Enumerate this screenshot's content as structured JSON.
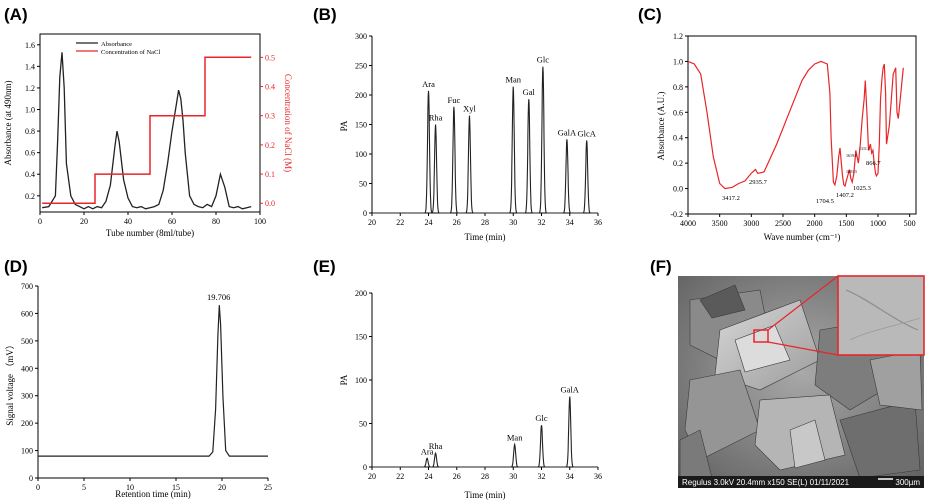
{
  "colors": {
    "black": "#222222",
    "red": "#e8262a",
    "axis": "#000000"
  },
  "chart_data": [
    {
      "id": "A",
      "panel_label": "(A)",
      "type": "line",
      "xlabel": "Tube number (8ml/tube)",
      "ylabel": "Absorbance (at 490nm)",
      "ylabel_right": "Concentration of NaCl (M)",
      "xlim": [
        0,
        100
      ],
      "ylim": [
        0.05,
        1.7
      ],
      "ylim_right": [
        -0.03,
        0.58
      ],
      "x_ticks": [
        "0",
        "20",
        "40",
        "60",
        "80",
        "100"
      ],
      "y_ticks": [
        "0.2",
        "0.4",
        "0.6",
        "0.8",
        "1.0",
        "1.2",
        "1.4",
        "1.6"
      ],
      "y_right_ticks": [
        "0.0",
        "0.1",
        "0.2",
        "0.3",
        "0.4",
        "0.5"
      ],
      "legend": {
        "position": "top-left",
        "entries": [
          "Absorbance",
          "Concentration of NaCl"
        ]
      },
      "series": [
        {
          "name": "Absorbance",
          "axis": "left",
          "color": "#222222",
          "x": [
            1,
            4,
            7,
            8,
            9,
            10,
            11,
            12,
            14,
            16,
            18,
            20,
            22,
            24,
            26,
            28,
            30,
            32,
            34,
            35,
            36,
            38,
            40,
            42,
            44,
            46,
            48,
            50,
            52,
            54,
            56,
            58,
            60,
            62,
            63,
            64,
            65,
            66,
            68,
            70,
            72,
            74,
            76,
            78,
            80,
            82,
            84,
            86,
            88,
            90,
            92,
            94,
            96
          ],
          "y": [
            0.09,
            0.1,
            0.2,
            0.7,
            1.3,
            1.53,
            1.2,
            0.5,
            0.2,
            0.12,
            0.1,
            0.08,
            0.1,
            0.08,
            0.1,
            0.09,
            0.15,
            0.3,
            0.65,
            0.8,
            0.7,
            0.35,
            0.18,
            0.1,
            0.09,
            0.1,
            0.08,
            0.09,
            0.1,
            0.12,
            0.25,
            0.5,
            0.8,
            1.05,
            1.18,
            1.1,
            0.9,
            0.6,
            0.2,
            0.12,
            0.1,
            0.09,
            0.12,
            0.1,
            0.2,
            0.4,
            0.28,
            0.1,
            0.09,
            0.1,
            0.08,
            0.09,
            0.1
          ]
        },
        {
          "name": "Concentration of NaCl",
          "axis": "right",
          "color": "#e8262a",
          "x": [
            1,
            25,
            25,
            50,
            50,
            75,
            75,
            96
          ],
          "y": [
            0,
            0,
            0.1,
            0.1,
            0.3,
            0.3,
            0.5,
            0.5
          ]
        }
      ]
    },
    {
      "id": "B",
      "panel_label": "(B)",
      "type": "line",
      "xlabel": "Time (min)",
      "ylabel": "PA",
      "xlim": [
        20,
        36
      ],
      "ylim": [
        0,
        300
      ],
      "x_ticks": [
        "20",
        "22",
        "24",
        "26",
        "28",
        "30",
        "32",
        "34",
        "36"
      ],
      "y_ticks": [
        "0",
        "50",
        "100",
        "150",
        "200",
        "250",
        "300"
      ],
      "peaks": [
        {
          "label": "Ara",
          "x": 24.0,
          "y": 207
        },
        {
          "label": "Rha",
          "x": 24.5,
          "y": 150
        },
        {
          "label": "Fuc",
          "x": 25.8,
          "y": 180
        },
        {
          "label": "Xyl",
          "x": 26.9,
          "y": 165
        },
        {
          "label": "Man",
          "x": 30.0,
          "y": 214
        },
        {
          "label": "Gal",
          "x": 31.1,
          "y": 193
        },
        {
          "label": "Glc",
          "x": 32.1,
          "y": 248
        },
        {
          "label": "GalA",
          "x": 33.8,
          "y": 125
        },
        {
          "label": "GlcA",
          "x": 35.2,
          "y": 123
        }
      ]
    },
    {
      "id": "C",
      "panel_label": "(C)",
      "type": "line",
      "xlabel": "Wave number (cm⁻¹)",
      "ylabel": "Absorbance (A.U.)",
      "xlim": [
        4000,
        400
      ],
      "ylim": [
        -0.2,
        1.2
      ],
      "x_ticks": [
        "4000",
        "3500",
        "3000",
        "2500",
        "2000",
        "1500",
        "1000",
        "500"
      ],
      "y_ticks": [
        "-0.2",
        "0.0",
        "0.2",
        "0.4",
        "0.6",
        "0.8",
        "1.0",
        "1.2"
      ],
      "series": [
        {
          "name": "",
          "color": "#e8262a",
          "x": [
            4000,
            3900,
            3800,
            3700,
            3600,
            3500,
            3417,
            3300,
            3200,
            3100,
            3000,
            2935,
            2900,
            2800,
            2600,
            2400,
            2200,
            2100,
            2000,
            1900,
            1800,
            1760,
            1740,
            1704,
            1680,
            1650,
            1620,
            1600,
            1560,
            1540,
            1520,
            1500,
            1450,
            1430,
            1407,
            1380,
            1350,
            1310,
            1280,
            1250,
            1220,
            1200,
            1170,
            1150,
            1120,
            1100,
            1080,
            1060,
            1040,
            1025,
            1000,
            980,
            960,
            940,
            920,
            900,
            880,
            866,
            850,
            820,
            790,
            760,
            720,
            700,
            680,
            650,
            600
          ],
          "y": [
            1.0,
            0.98,
            0.9,
            0.6,
            0.25,
            0.04,
            0.0,
            0.01,
            0.04,
            0.06,
            0.12,
            0.15,
            0.12,
            0.13,
            0.35,
            0.6,
            0.85,
            0.93,
            0.98,
            1.0,
            0.98,
            0.75,
            0.4,
            0.05,
            0.03,
            0.1,
            0.25,
            0.32,
            0.1,
            0.03,
            0.02,
            0.06,
            0.15,
            0.08,
            0.05,
            0.12,
            0.3,
            0.2,
            0.35,
            0.55,
            0.7,
            0.85,
            0.55,
            0.3,
            0.35,
            0.28,
            0.3,
            0.2,
            0.12,
            0.1,
            0.12,
            0.35,
            0.7,
            0.85,
            0.95,
            0.98,
            0.75,
            0.35,
            0.4,
            0.5,
            0.7,
            0.9,
            0.95,
            0.6,
            0.55,
            0.7,
            0.95
          ]
        }
      ],
      "annotations": [
        "3417.2",
        "2935.7",
        "1704.5",
        "1407.2",
        "1025.3",
        "866.7",
        "1619.6",
        "1601.5",
        "1311.4"
      ]
    },
    {
      "id": "D",
      "panel_label": "(D)",
      "type": "line",
      "xlabel": "Retention time (min)",
      "ylabel": "Signal voltage （mV）",
      "xlim": [
        0,
        25
      ],
      "ylim": [
        0,
        700
      ],
      "x_ticks": [
        "0",
        "5",
        "10",
        "15",
        "20",
        "25"
      ],
      "y_ticks": [
        "0",
        "100",
        "200",
        "300",
        "400",
        "500",
        "600",
        "700"
      ],
      "series": [
        {
          "name": "",
          "color": "#222222",
          "x": [
            0,
            18.6,
            19.0,
            19.3,
            19.55,
            19.706,
            19.85,
            20.1,
            20.4,
            20.8,
            25
          ],
          "y": [
            80,
            80,
            95,
            250,
            520,
            630,
            560,
            300,
            100,
            80,
            80
          ]
        }
      ],
      "annotations": [
        "19.706"
      ]
    },
    {
      "id": "E",
      "panel_label": "(E)",
      "type": "line",
      "xlabel": "Time (min)",
      "ylabel": "PA",
      "xlim": [
        20,
        36
      ],
      "ylim": [
        0,
        200
      ],
      "x_ticks": [
        "20",
        "22",
        "24",
        "26",
        "28",
        "30",
        "32",
        "34",
        "36"
      ],
      "y_ticks": [
        "0",
        "50",
        "100",
        "150",
        "200"
      ],
      "peaks": [
        {
          "label": "Ara",
          "x": 23.9,
          "y": 10
        },
        {
          "label": "Rha",
          "x": 24.5,
          "y": 16
        },
        {
          "label": "Man",
          "x": 30.1,
          "y": 26
        },
        {
          "label": "Glc",
          "x": 32.0,
          "y": 48
        },
        {
          "label": "GalA",
          "x": 34.0,
          "y": 81
        }
      ]
    }
  ],
  "sem": {
    "panel_label": "(F)",
    "info": "Regulus 3.0kV 20.4mm x150 SE(L) 01/11/2021",
    "scale": "300µm"
  }
}
